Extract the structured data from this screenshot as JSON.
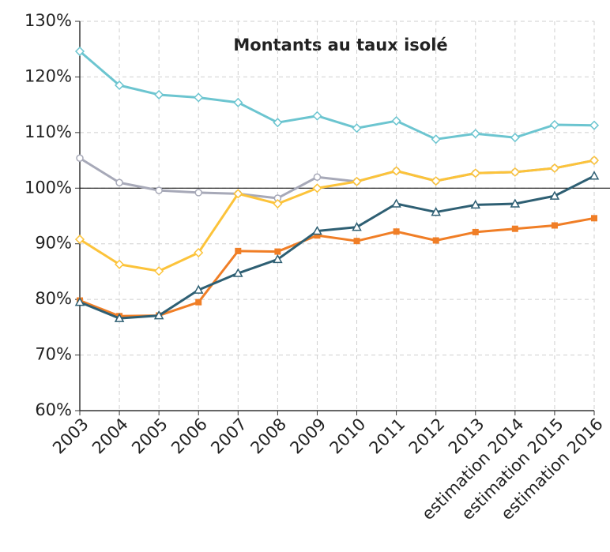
{
  "chart_data": {
    "type": "line",
    "title": "Montants au taux isolé",
    "categories": [
      "2003",
      "2004",
      "2005",
      "2006",
      "2007",
      "2008",
      "2009",
      "2010",
      "2011",
      "2012",
      "2013",
      "estimation 2014",
      "estimation 2015",
      "estimation 2016"
    ],
    "series": [
      {
        "color": "#6cc5d0",
        "marker": "diamond",
        "values": [
          124.6,
          118.5,
          116.8,
          116.3,
          115.4,
          111.8,
          113.0,
          110.8,
          112.1,
          108.8,
          109.8,
          109.1,
          111.4,
          111.3
        ]
      },
      {
        "color": "#a7a9b8",
        "marker": "circle",
        "values": [
          105.4,
          101.0,
          99.6,
          99.2,
          99.0,
          98.2,
          102.0,
          101.2,
          103.1,
          101.3,
          102.7,
          102.9,
          103.6,
          105.0
        ]
      },
      {
        "color": "#fcc33a",
        "marker": "diamond",
        "values": [
          90.8,
          86.3,
          85.1,
          88.4,
          99.0,
          97.2,
          100.0,
          101.2,
          103.1,
          101.3,
          102.7,
          102.9,
          103.6,
          105.0
        ]
      },
      {
        "color": "#f07e26",
        "marker": "square",
        "values": [
          79.8,
          77.0,
          77.1,
          79.5,
          88.7,
          88.6,
          91.5,
          90.5,
          92.2,
          90.6,
          92.1,
          92.7,
          93.3,
          94.6
        ]
      },
      {
        "color": "#2e5f73",
        "marker": "triangle",
        "values": [
          79.5,
          76.6,
          77.1,
          81.7,
          84.7,
          87.2,
          92.3,
          93.0,
          97.2,
          95.7,
          97.0,
          97.2,
          98.6,
          102.2
        ]
      }
    ],
    "reference_line": 100,
    "ylim": [
      60,
      130
    ],
    "yticks": [
      {
        "value": 60,
        "label": "60%"
      },
      {
        "value": 70,
        "label": "70%"
      },
      {
        "value": 80,
        "label": "80%"
      },
      {
        "value": 90,
        "label": "90%"
      },
      {
        "value": 100,
        "label": "100%"
      },
      {
        "value": 110,
        "label": "110%"
      },
      {
        "value": 120,
        "label": "120%"
      },
      {
        "value": 130,
        "label": "130%"
      }
    ],
    "grid": true
  }
}
